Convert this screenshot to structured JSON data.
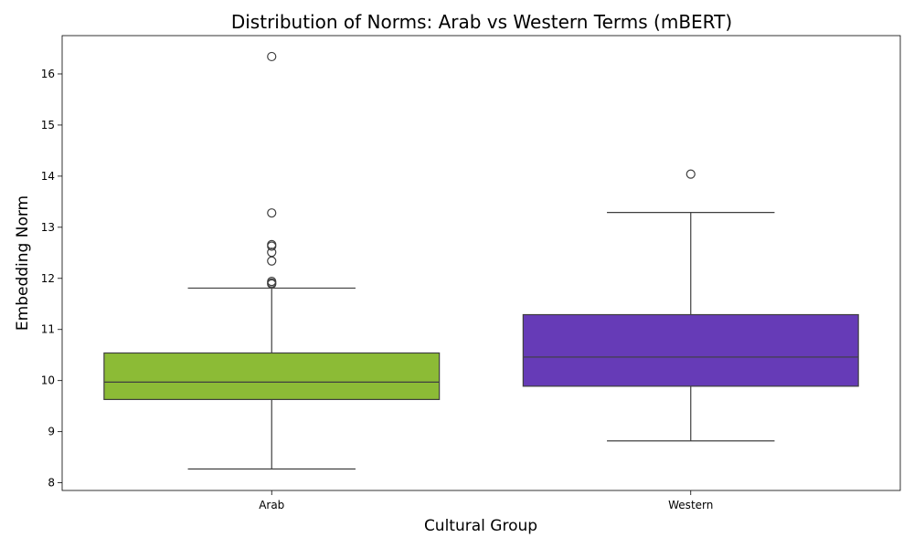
{
  "chart_data": {
    "type": "box",
    "title": "Distribution of Norms: Arab vs Western Terms (mBERT)",
    "xlabel": "Cultural Group",
    "ylabel": "Embedding Norm",
    "ylim": [
      7.85,
      16.75
    ],
    "yticks": [
      8,
      9,
      10,
      11,
      12,
      13,
      14,
      15,
      16
    ],
    "grid": false,
    "legend": "none",
    "categories": [
      "Arab",
      "Western"
    ],
    "boxes": [
      {
        "category": "Arab",
        "color": "#8cbb36",
        "whisker_low": 8.27,
        "q1": 9.63,
        "median": 9.97,
        "q3": 10.54,
        "whisker_high": 11.81,
        "outliers": [
          11.89,
          11.91,
          11.94,
          12.34,
          12.51,
          12.63,
          12.66,
          13.28,
          16.34
        ]
      },
      {
        "category": "Western",
        "color": "#663bb7",
        "whisker_low": 8.82,
        "q1": 9.89,
        "median": 10.46,
        "q3": 11.29,
        "whisker_high": 13.29,
        "outliers": [
          14.04
        ]
      }
    ]
  }
}
